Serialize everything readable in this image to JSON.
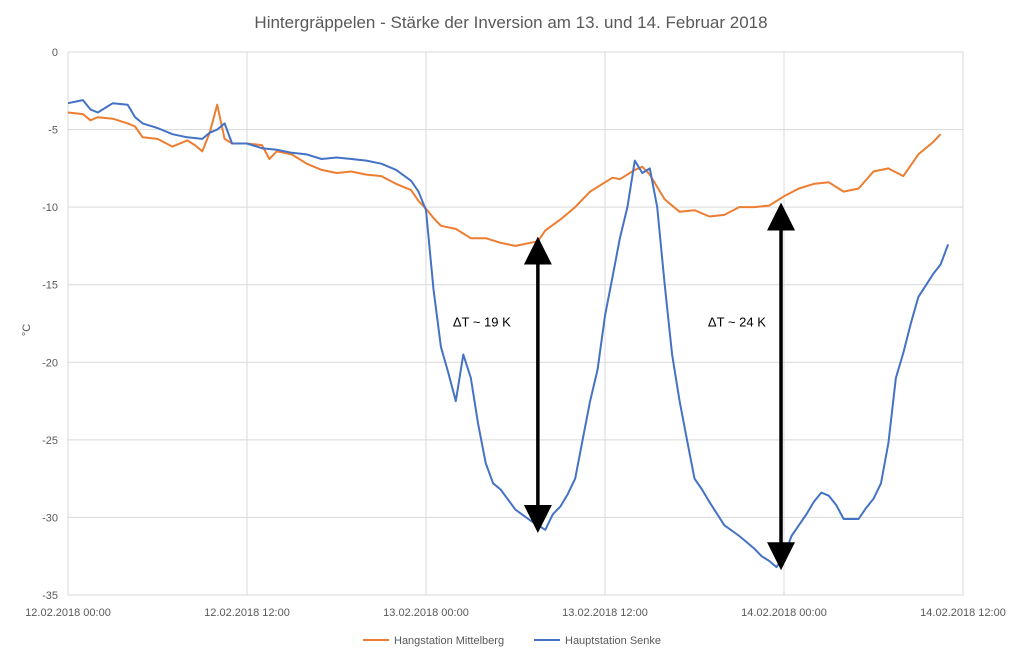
{
  "chart_data": {
    "type": "line",
    "title": "Hintergräppelen - Stärke der Inversion am 13. und 14. Februar 2018",
    "ylabel": "°C",
    "xlabel": "",
    "ylim": [
      -35,
      0
    ],
    "y_ticks": [
      0,
      -5,
      -10,
      -15,
      -20,
      -25,
      -30,
      -35
    ],
    "x_range_hours": [
      0,
      60
    ],
    "x_ticks": [
      {
        "hour": 0,
        "label": "12.02.2018 00:00"
      },
      {
        "hour": 12,
        "label": "12.02.2018 12:00"
      },
      {
        "hour": 24,
        "label": "13.02.2018 00:00"
      },
      {
        "hour": 36,
        "label": "13.02.2018 12:00"
      },
      {
        "hour": 48,
        "label": "14.02.2018 00:00"
      },
      {
        "hour": 60,
        "label": "14.02.2018 12:00"
      }
    ],
    "grid": true,
    "legend_position": "bottom",
    "series": [
      {
        "name": "Hangstation Mittelberg",
        "color": "#ED7D31",
        "points": [
          [
            0,
            -3.9
          ],
          [
            1,
            -4.0
          ],
          [
            1.5,
            -4.4
          ],
          [
            2,
            -4.2
          ],
          [
            3,
            -4.3
          ],
          [
            4,
            -4.6
          ],
          [
            4.5,
            -4.8
          ],
          [
            5,
            -5.5
          ],
          [
            6,
            -5.6
          ],
          [
            7,
            -6.1
          ],
          [
            8,
            -5.7
          ],
          [
            8.5,
            -6.0
          ],
          [
            9,
            -6.4
          ],
          [
            9.5,
            -5.2
          ],
          [
            10,
            -3.4
          ],
          [
            10.5,
            -5.6
          ],
          [
            11,
            -5.9
          ],
          [
            12,
            -5.9
          ],
          [
            13,
            -6.0
          ],
          [
            13.5,
            -6.9
          ],
          [
            14,
            -6.4
          ],
          [
            15,
            -6.6
          ],
          [
            16,
            -7.2
          ],
          [
            17,
            -7.6
          ],
          [
            18,
            -7.8
          ],
          [
            19,
            -7.7
          ],
          [
            20,
            -7.9
          ],
          [
            21,
            -8.0
          ],
          [
            22,
            -8.5
          ],
          [
            23,
            -8.9
          ],
          [
            23.5,
            -9.6
          ],
          [
            24,
            -10.1
          ],
          [
            24.5,
            -10.7
          ],
          [
            25,
            -11.2
          ],
          [
            26,
            -11.4
          ],
          [
            27,
            -12.0
          ],
          [
            28,
            -12.0
          ],
          [
            29,
            -12.3
          ],
          [
            30,
            -12.5
          ],
          [
            31,
            -12.3
          ],
          [
            31.5,
            -12.2
          ],
          [
            32,
            -11.5
          ],
          [
            33,
            -10.8
          ],
          [
            34,
            -10.0
          ],
          [
            35,
            -9.0
          ],
          [
            36,
            -8.4
          ],
          [
            36.5,
            -8.1
          ],
          [
            37,
            -8.2
          ],
          [
            38,
            -7.6
          ],
          [
            38.5,
            -7.4
          ],
          [
            39,
            -7.9
          ],
          [
            40,
            -9.5
          ],
          [
            41,
            -10.3
          ],
          [
            42,
            -10.2
          ],
          [
            43,
            -10.6
          ],
          [
            44,
            -10.5
          ],
          [
            45,
            -10.0
          ],
          [
            46,
            -10.0
          ],
          [
            47,
            -9.9
          ],
          [
            48,
            -9.3
          ],
          [
            49,
            -8.8
          ],
          [
            50,
            -8.5
          ],
          [
            51,
            -8.4
          ],
          [
            52,
            -9.0
          ],
          [
            53,
            -8.8
          ],
          [
            54,
            -7.7
          ],
          [
            55,
            -7.5
          ],
          [
            56,
            -8.0
          ],
          [
            56.5,
            -7.3
          ],
          [
            57,
            -6.6
          ],
          [
            58,
            -5.8
          ],
          [
            58.5,
            -5.3
          ]
        ]
      },
      {
        "name": "Hauptstation Senke",
        "color": "#4472C4",
        "points": [
          [
            0,
            -3.3
          ],
          [
            1,
            -3.1
          ],
          [
            1.5,
            -3.7
          ],
          [
            2,
            -3.9
          ],
          [
            3,
            -3.3
          ],
          [
            4,
            -3.4
          ],
          [
            4.5,
            -4.2
          ],
          [
            5,
            -4.6
          ],
          [
            6,
            -4.9
          ],
          [
            7,
            -5.3
          ],
          [
            8,
            -5.5
          ],
          [
            9,
            -5.6
          ],
          [
            9.5,
            -5.2
          ],
          [
            10,
            -5.0
          ],
          [
            10.5,
            -4.6
          ],
          [
            11,
            -5.9
          ],
          [
            12,
            -5.9
          ],
          [
            13,
            -6.2
          ],
          [
            14,
            -6.3
          ],
          [
            15,
            -6.5
          ],
          [
            16,
            -6.6
          ],
          [
            17,
            -6.9
          ],
          [
            18,
            -6.8
          ],
          [
            19,
            -6.9
          ],
          [
            20,
            -7.0
          ],
          [
            21,
            -7.2
          ],
          [
            22,
            -7.6
          ],
          [
            23,
            -8.3
          ],
          [
            23.5,
            -9.0
          ],
          [
            24,
            -10.2
          ],
          [
            24.5,
            -15.3
          ],
          [
            25,
            -19.0
          ],
          [
            25.5,
            -20.7
          ],
          [
            26,
            -22.5
          ],
          [
            26.5,
            -19.5
          ],
          [
            27,
            -21.0
          ],
          [
            27.5,
            -24.0
          ],
          [
            28,
            -26.5
          ],
          [
            28.5,
            -27.8
          ],
          [
            29,
            -28.2
          ],
          [
            30,
            -29.5
          ],
          [
            31,
            -30.2
          ],
          [
            31.5,
            -30.5
          ],
          [
            32,
            -30.8
          ],
          [
            32.5,
            -29.8
          ],
          [
            33,
            -29.3
          ],
          [
            33.5,
            -28.5
          ],
          [
            34,
            -27.5
          ],
          [
            34.5,
            -25.0
          ],
          [
            35,
            -22.5
          ],
          [
            35.5,
            -20.5
          ],
          [
            36,
            -17.0
          ],
          [
            36.5,
            -14.5
          ],
          [
            37,
            -12.0
          ],
          [
            37.5,
            -10.0
          ],
          [
            38,
            -7.0
          ],
          [
            38.5,
            -7.8
          ],
          [
            39,
            -7.5
          ],
          [
            39.5,
            -10.0
          ],
          [
            40,
            -15.0
          ],
          [
            40.5,
            -19.5
          ],
          [
            41,
            -22.5
          ],
          [
            41.5,
            -25.0
          ],
          [
            42,
            -27.5
          ],
          [
            42.5,
            -28.2
          ],
          [
            43,
            -29.0
          ],
          [
            44,
            -30.5
          ],
          [
            45,
            -31.2
          ],
          [
            46,
            -32.0
          ],
          [
            46.5,
            -32.5
          ],
          [
            47,
            -32.8
          ],
          [
            47.5,
            -33.2
          ],
          [
            48,
            -32.5
          ],
          [
            48.5,
            -31.2
          ],
          [
            49,
            -30.5
          ],
          [
            49.5,
            -29.8
          ],
          [
            50,
            -29.0
          ],
          [
            50.5,
            -28.4
          ],
          [
            51,
            -28.6
          ],
          [
            51.5,
            -29.2
          ],
          [
            52,
            -30.1
          ],
          [
            53,
            -30.1
          ],
          [
            53.5,
            -29.4
          ],
          [
            54,
            -28.8
          ],
          [
            54.5,
            -27.8
          ],
          [
            55,
            -25.2
          ],
          [
            55.5,
            -21.0
          ],
          [
            56,
            -19.4
          ],
          [
            56.5,
            -17.5
          ],
          [
            57,
            -15.8
          ],
          [
            58,
            -14.3
          ],
          [
            58.5,
            -13.7
          ],
          [
            59,
            -12.4
          ]
        ]
      }
    ],
    "annotations": [
      {
        "text": "ΔT ~ 19 K",
        "label_hour": 25.8,
        "label_y": -17.7,
        "arrow_hour": 31.5,
        "arrow_from": -12.8,
        "arrow_to": -30.1
      },
      {
        "text": "ΔT ~ 24 K",
        "label_hour": 42.9,
        "label_y": -17.7,
        "arrow_hour": 47.8,
        "arrow_from": -10.6,
        "arrow_to": -32.5
      }
    ]
  }
}
